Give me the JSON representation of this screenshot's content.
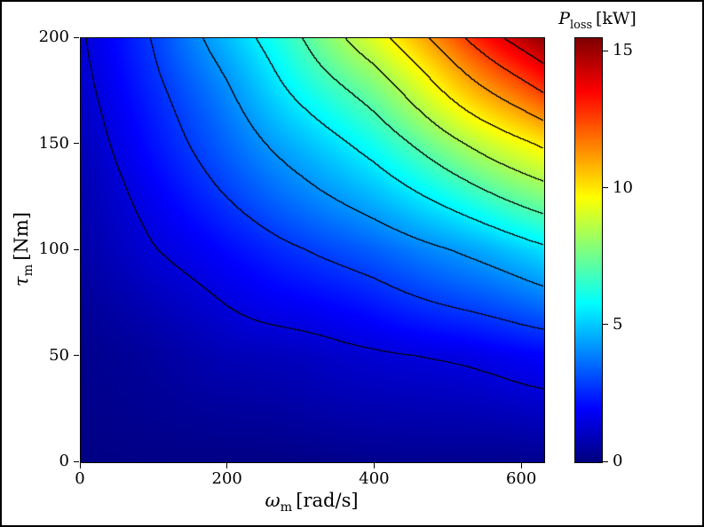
{
  "chart_data": {
    "type": "heatmap",
    "title": "",
    "xlabel": {
      "symbol": "ω",
      "sub": "m",
      "unit": "[rad/s]"
    },
    "ylabel": {
      "symbol": "τ",
      "sub": "m",
      "unit": "[Nm]"
    },
    "colorbar_title": {
      "symbol": "P",
      "sub": "loss",
      "unit": "[kW]"
    },
    "colormap": "jet",
    "xlim": [
      0,
      630
    ],
    "ylim": [
      0,
      200
    ],
    "clim": [
      0,
      15.5
    ],
    "x_ticks": [
      0,
      200,
      400,
      600
    ],
    "y_ticks": [
      0,
      50,
      100,
      150,
      200
    ],
    "colorbar_ticks": [
      0,
      5,
      10,
      15
    ],
    "grid": false,
    "legend_position": "none",
    "x": [
      0,
      100,
      200,
      300,
      400,
      500,
      630
    ],
    "y": [
      0,
      50,
      100,
      150,
      200
    ],
    "values": [
      [
        0.05,
        0.1,
        0.12,
        0.15,
        0.2,
        0.25,
        0.3
      ],
      [
        0.2,
        0.5,
        0.8,
        1.0,
        1.2,
        1.5,
        1.9
      ],
      [
        0.5,
        1.4,
        2.1,
        2.7,
        3.4,
        4.2,
        5.3
      ],
      [
        0.9,
        2.2,
        3.5,
        4.8,
        6.2,
        7.9,
        10.0
      ],
      [
        1.3,
        2.8,
        4.8,
        7.0,
        9.3,
        12.0,
        15.5
      ]
    ],
    "contour_levels": [
      1.4,
      2.8,
      4.2,
      5.6,
      7.0,
      8.4,
      9.8,
      11.2,
      12.6,
      14.0
    ],
    "contour_color": "#000000"
  }
}
